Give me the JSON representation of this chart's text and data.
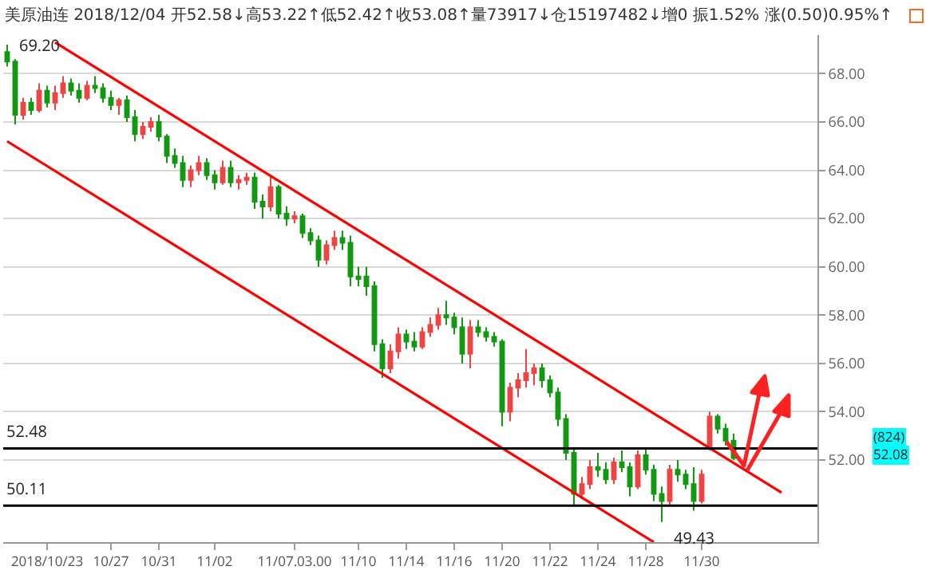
{
  "chart_data": {
    "type": "candlestick",
    "title": "美原油连 2018/12/04 开52.58↓高53.22↑低52.42↑收53.08↑量73917↓仓15197482↓增0 振1.52% 涨(0.50)0.95%↑",
    "categories": [
      null,
      null,
      null,
      null,
      null,
      "2018/10/23",
      null,
      null,
      null,
      null,
      null,
      null,
      null,
      "10/27",
      null,
      null,
      null,
      null,
      null,
      "10/31",
      null,
      null,
      null,
      null,
      null,
      null,
      "11/02",
      null,
      null,
      null,
      null,
      null,
      null,
      null,
      null,
      null,
      "11/07.03.00",
      null,
      null,
      null,
      null,
      null,
      null,
      null,
      "11/10",
      null,
      null,
      null,
      null,
      null,
      "11/14",
      null,
      null,
      null,
      null,
      null,
      "11/16",
      null,
      null,
      null,
      null,
      null,
      "11/20",
      null,
      null,
      null,
      null,
      null,
      "11/22",
      null,
      null,
      null,
      null,
      null,
      "11/24",
      null,
      null,
      null,
      null,
      null,
      "11/28",
      null,
      null,
      null,
      null,
      null,
      null,
      "11/30",
      null,
      null,
      null,
      null,
      null,
      null,
      null,
      null,
      null,
      null,
      null,
      null,
      null,
      null
    ],
    "ohlc": [
      [
        68.9,
        69.2,
        68.3,
        68.5
      ],
      [
        68.5,
        68.6,
        65.9,
        66.3
      ],
      [
        66.3,
        67.0,
        66.1,
        66.8
      ],
      [
        66.8,
        67.0,
        66.3,
        66.5
      ],
      [
        66.5,
        67.6,
        66.4,
        67.3
      ],
      [
        67.3,
        67.5,
        66.6,
        66.8
      ],
      [
        66.8,
        67.5,
        66.5,
        67.2
      ],
      [
        67.2,
        67.9,
        67.0,
        67.6
      ],
      [
        67.6,
        67.8,
        67.1,
        67.3
      ],
      [
        67.3,
        67.6,
        66.8,
        67.0
      ],
      [
        67.0,
        67.7,
        66.9,
        67.5
      ],
      [
        67.5,
        67.9,
        67.2,
        67.4
      ],
      [
        67.4,
        67.6,
        66.8,
        67.0
      ],
      [
        67.0,
        67.3,
        66.5,
        66.7
      ],
      [
        66.7,
        67.0,
        66.3,
        66.9
      ],
      [
        66.9,
        67.1,
        66.0,
        66.2
      ],
      [
        66.2,
        66.5,
        65.2,
        65.5
      ],
      [
        65.5,
        66.0,
        65.3,
        65.8
      ],
      [
        65.8,
        66.2,
        65.6,
        66.0
      ],
      [
        66.0,
        66.3,
        65.2,
        65.4
      ],
      [
        65.4,
        65.5,
        64.3,
        64.6
      ],
      [
        64.6,
        64.9,
        64.1,
        64.3
      ],
      [
        64.3,
        64.6,
        63.3,
        63.6
      ],
      [
        63.6,
        64.2,
        63.3,
        64.0
      ],
      [
        64.0,
        64.6,
        63.8,
        64.3
      ],
      [
        64.3,
        64.5,
        63.6,
        63.8
      ],
      [
        63.8,
        64.0,
        63.2,
        63.5
      ],
      [
        63.5,
        64.4,
        63.4,
        64.1
      ],
      [
        64.1,
        64.4,
        63.3,
        63.5
      ],
      [
        63.5,
        63.8,
        63.2,
        63.6
      ],
      [
        63.6,
        63.9,
        63.4,
        63.7
      ],
      [
        63.7,
        63.9,
        62.4,
        62.7
      ],
      [
        62.7,
        63.0,
        62.0,
        62.5
      ],
      [
        62.5,
        63.8,
        62.3,
        63.3
      ],
      [
        63.3,
        63.4,
        62.0,
        62.2
      ],
      [
        62.2,
        62.5,
        61.7,
        62.0
      ],
      [
        62.0,
        62.3,
        61.8,
        62.1
      ],
      [
        62.1,
        62.2,
        61.2,
        61.4
      ],
      [
        61.4,
        61.6,
        60.9,
        61.1
      ],
      [
        61.1,
        61.3,
        60.0,
        60.3
      ],
      [
        60.3,
        61.1,
        60.1,
        60.9
      ],
      [
        60.9,
        61.5,
        60.7,
        61.2
      ],
      [
        61.2,
        61.5,
        60.7,
        61.0
      ],
      [
        61.0,
        61.3,
        59.2,
        59.6
      ],
      [
        59.6,
        60.0,
        59.2,
        59.5
      ],
      [
        59.6,
        60.0,
        58.8,
        59.2
      ],
      [
        59.2,
        59.4,
        56.5,
        56.8
      ],
      [
        56.8,
        57.0,
        55.4,
        55.8
      ],
      [
        55.8,
        56.8,
        55.6,
        56.5
      ],
      [
        56.5,
        57.5,
        56.2,
        57.2
      ],
      [
        57.2,
        57.4,
        56.6,
        56.9
      ],
      [
        56.9,
        57.3,
        56.5,
        56.7
      ],
      [
        56.7,
        57.5,
        56.6,
        57.3
      ],
      [
        57.3,
        57.9,
        57.1,
        57.6
      ],
      [
        57.6,
        58.3,
        57.4,
        58.0
      ],
      [
        58.0,
        58.6,
        57.6,
        57.9
      ],
      [
        57.9,
        58.1,
        57.2,
        57.5
      ],
      [
        57.5,
        57.9,
        56.0,
        56.4
      ],
      [
        56.4,
        57.8,
        55.8,
        57.5
      ],
      [
        57.5,
        57.8,
        57.1,
        57.3
      ],
      [
        57.3,
        57.5,
        56.9,
        57.1
      ],
      [
        57.1,
        57.3,
        56.7,
        56.9
      ],
      [
        56.9,
        57.0,
        53.4,
        54.0
      ],
      [
        54.0,
        55.2,
        53.6,
        55.0
      ],
      [
        55.0,
        55.6,
        54.6,
        55.3
      ],
      [
        55.3,
        56.6,
        55.0,
        55.6
      ],
      [
        55.6,
        56.0,
        55.1,
        55.8
      ],
      [
        55.8,
        56.0,
        55.0,
        55.3
      ],
      [
        55.3,
        55.5,
        54.6,
        54.8
      ],
      [
        54.8,
        55.0,
        53.4,
        53.7
      ],
      [
        53.7,
        53.9,
        52.0,
        52.3
      ],
      [
        52.3,
        52.5,
        50.1,
        50.6
      ],
      [
        50.6,
        51.3,
        50.4,
        51.0
      ],
      [
        51.0,
        52.0,
        50.8,
        51.7
      ],
      [
        51.7,
        52.3,
        51.3,
        51.6
      ],
      [
        51.6,
        51.9,
        51.0,
        51.2
      ],
      [
        51.2,
        52.1,
        51.0,
        51.9
      ],
      [
        51.9,
        52.4,
        51.5,
        51.7
      ],
      [
        51.7,
        51.9,
        50.5,
        50.9
      ],
      [
        50.9,
        52.4,
        50.8,
        52.2
      ],
      [
        52.2,
        52.5,
        51.4,
        51.6
      ],
      [
        51.6,
        51.8,
        50.3,
        50.6
      ],
      [
        50.6,
        50.9,
        49.43,
        50.3
      ],
      [
        50.3,
        51.8,
        50.1,
        51.6
      ],
      [
        51.6,
        52.0,
        51.1,
        51.4
      ],
      [
        51.4,
        51.6,
        50.8,
        51.0
      ],
      [
        51.0,
        51.7,
        49.9,
        50.3
      ],
      [
        50.3,
        51.6,
        50.2,
        51.4
      ],
      [
        52.5,
        54.0,
        52.4,
        53.8
      ],
      [
        53.8,
        53.9,
        53.1,
        53.3
      ],
      [
        53.3,
        53.5,
        52.6,
        52.8
      ],
      [
        52.8,
        53.1,
        52.0,
        52.08
      ],
      null,
      null,
      null,
      null,
      null,
      null,
      null,
      null,
      null,
      null
    ],
    "series": [
      {
        "type": "line",
        "color": "#ff0000",
        "values": [
          null,
          null,
          null,
          null,
          null,
          null,
          69.3,
          null,
          null,
          null,
          null,
          null,
          null,
          null,
          null,
          null,
          null,
          null,
          null,
          null,
          null,
          null,
          null,
          null,
          null,
          null,
          null,
          null,
          null,
          null,
          null,
          null,
          null,
          null,
          null,
          null,
          null,
          null,
          null,
          null,
          null,
          null,
          null,
          null,
          null,
          null,
          null,
          null,
          null,
          null,
          null,
          null,
          null,
          null,
          null,
          null,
          null,
          null,
          null,
          null,
          null,
          null,
          null,
          null,
          null,
          null,
          null,
          null,
          null,
          null,
          null,
          null,
          null,
          null,
          null,
          null,
          null,
          null,
          null,
          null,
          null,
          null,
          null,
          null,
          null,
          null,
          null,
          null,
          null,
          null,
          null,
          null,
          null,
          null,
          null,
          null,
          null,
          50.65,
          null,
          null,
          null,
          null
        ]
      },
      {
        "type": "line",
        "color": "#ff0000",
        "values": [
          65.2,
          null,
          null,
          null,
          null,
          null,
          null,
          null,
          null,
          null,
          null,
          null,
          null,
          null,
          null,
          null,
          null,
          null,
          null,
          null,
          null,
          null,
          null,
          null,
          null,
          null,
          null,
          null,
          null,
          null,
          null,
          null,
          null,
          null,
          null,
          null,
          null,
          null,
          null,
          null,
          null,
          null,
          null,
          null,
          null,
          null,
          null,
          null,
          null,
          null,
          null,
          null,
          null,
          null,
          null,
          null,
          null,
          null,
          null,
          null,
          null,
          null,
          null,
          null,
          null,
          null,
          null,
          null,
          null,
          null,
          null,
          null,
          null,
          null,
          null,
          null,
          null,
          null,
          null,
          null,
          null,
          48.6,
          null,
          null,
          null,
          null,
          null,
          null,
          null,
          null,
          null,
          null,
          null,
          null,
          null,
          null,
          null,
          null,
          null,
          null,
          null,
          null
        ]
      }
    ],
    "ref_lines": [
      {
        "axis": "y",
        "value": 52.48,
        "label": "52.48",
        "color": "#000000"
      },
      {
        "axis": "y",
        "value": 50.11,
        "label": "50.11",
        "color": "#000000"
      }
    ],
    "annotations": [
      "69.20",
      "49.43",
      "(824)",
      "52.08"
    ],
    "ylim": [
      48.6,
      69.6
    ],
    "yticks": [
      {
        "value": 52,
        "label": "52.00"
      },
      {
        "value": 54,
        "label": "54.00"
      },
      {
        "value": 56,
        "label": "56.00"
      },
      {
        "value": 58,
        "label": "58.00"
      },
      {
        "value": 60,
        "label": "60.00"
      },
      {
        "value": 62,
        "label": "62.00"
      },
      {
        "value": 64,
        "label": "64.00"
      },
      {
        "value": 66,
        "label": "66.00"
      },
      {
        "value": 68,
        "label": "68.00"
      }
    ],
    "grid": "y",
    "legend": false
  }
}
